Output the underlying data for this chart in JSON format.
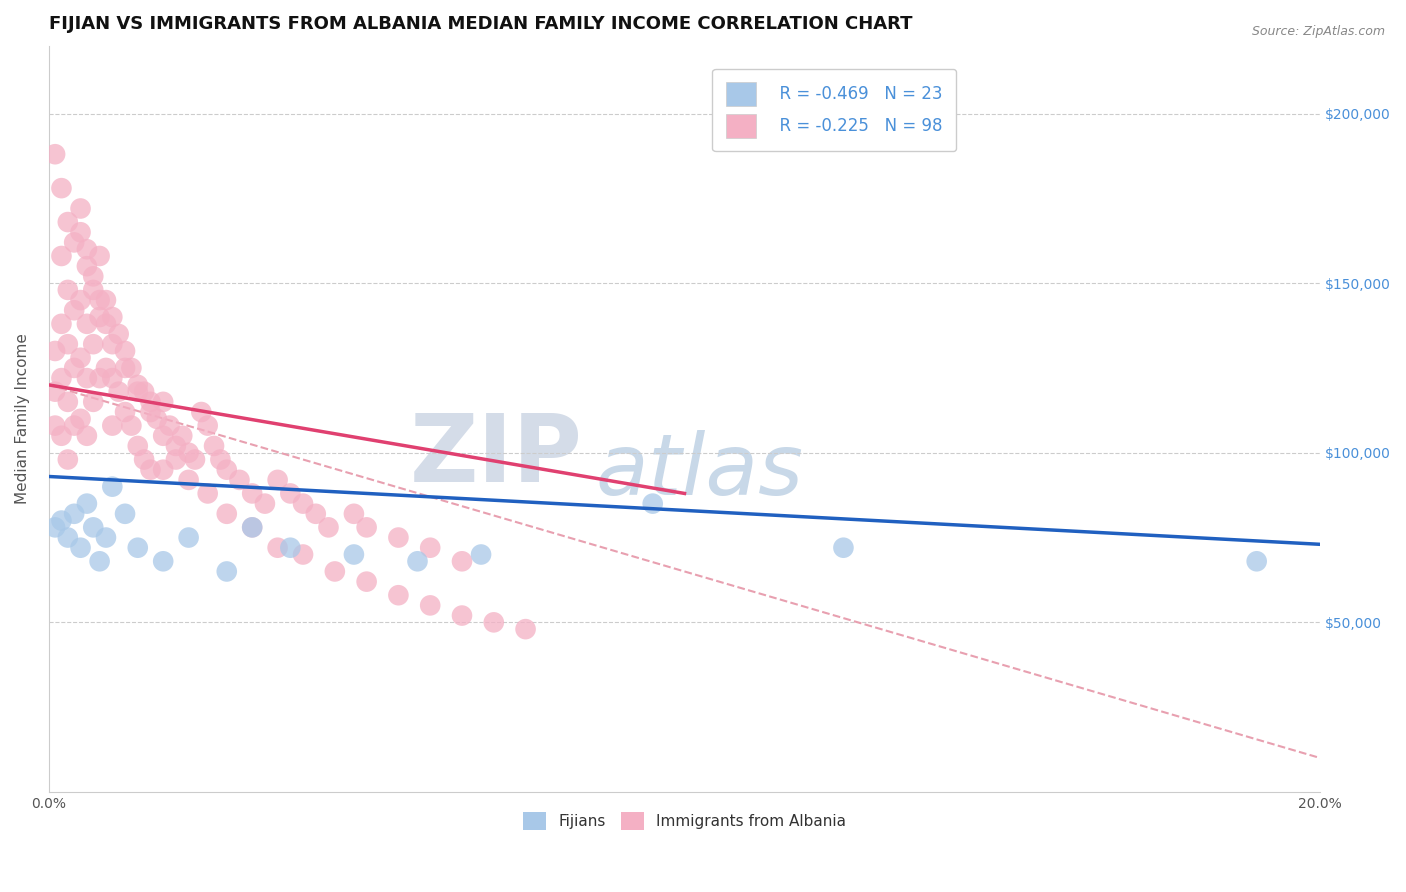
{
  "title": "FIJIAN VS IMMIGRANTS FROM ALBANIA MEDIAN FAMILY INCOME CORRELATION CHART",
  "source": "Source: ZipAtlas.com",
  "ylabel": "Median Family Income",
  "xlim": [
    0.0,
    0.2
  ],
  "ylim": [
    0,
    220000
  ],
  "xticks": [
    0.0,
    0.02,
    0.04,
    0.06,
    0.08,
    0.1,
    0.12,
    0.14,
    0.16,
    0.18,
    0.2
  ],
  "yticks": [
    0,
    50000,
    100000,
    150000,
    200000
  ],
  "fijian_color": "#a8c8e8",
  "albania_color": "#f4b0c4",
  "fijian_line_color": "#2060c0",
  "albania_line_color": "#e04070",
  "dashed_line_color": "#e8a0b0",
  "background_color": "#ffffff",
  "grid_color": "#cccccc",
  "title_fontsize": 13,
  "axis_label_fontsize": 11,
  "tick_fontsize": 10,
  "legend_fontsize": 12,
  "fijians_x": [
    0.001,
    0.002,
    0.003,
    0.004,
    0.005,
    0.006,
    0.007,
    0.008,
    0.009,
    0.01,
    0.012,
    0.014,
    0.018,
    0.022,
    0.028,
    0.032,
    0.038,
    0.048,
    0.058,
    0.068,
    0.095,
    0.125,
    0.19
  ],
  "fijians_y": [
    78000,
    80000,
    75000,
    82000,
    72000,
    85000,
    78000,
    68000,
    75000,
    90000,
    82000,
    72000,
    68000,
    75000,
    65000,
    78000,
    72000,
    70000,
    68000,
    70000,
    85000,
    72000,
    68000
  ],
  "albania_x": [
    0.001,
    0.001,
    0.001,
    0.002,
    0.002,
    0.002,
    0.002,
    0.003,
    0.003,
    0.003,
    0.003,
    0.004,
    0.004,
    0.004,
    0.005,
    0.005,
    0.005,
    0.005,
    0.006,
    0.006,
    0.006,
    0.006,
    0.007,
    0.007,
    0.007,
    0.008,
    0.008,
    0.008,
    0.009,
    0.009,
    0.01,
    0.01,
    0.01,
    0.011,
    0.011,
    0.012,
    0.012,
    0.013,
    0.013,
    0.014,
    0.014,
    0.015,
    0.015,
    0.016,
    0.016,
    0.017,
    0.018,
    0.018,
    0.019,
    0.02,
    0.021,
    0.022,
    0.023,
    0.024,
    0.025,
    0.026,
    0.027,
    0.028,
    0.03,
    0.032,
    0.034,
    0.036,
    0.038,
    0.04,
    0.042,
    0.044,
    0.048,
    0.05,
    0.055,
    0.06,
    0.065,
    0.001,
    0.002,
    0.003,
    0.004,
    0.005,
    0.006,
    0.007,
    0.008,
    0.009,
    0.01,
    0.012,
    0.014,
    0.016,
    0.018,
    0.02,
    0.022,
    0.025,
    0.028,
    0.032,
    0.036,
    0.04,
    0.045,
    0.05,
    0.055,
    0.06,
    0.065,
    0.07,
    0.075
  ],
  "albania_y": [
    130000,
    118000,
    108000,
    158000,
    138000,
    122000,
    105000,
    148000,
    132000,
    115000,
    98000,
    142000,
    125000,
    108000,
    165000,
    145000,
    128000,
    110000,
    155000,
    138000,
    122000,
    105000,
    148000,
    132000,
    115000,
    158000,
    140000,
    122000,
    145000,
    125000,
    140000,
    122000,
    108000,
    135000,
    118000,
    130000,
    112000,
    125000,
    108000,
    120000,
    102000,
    118000,
    98000,
    115000,
    95000,
    110000,
    115000,
    95000,
    108000,
    102000,
    105000,
    100000,
    98000,
    112000,
    108000,
    102000,
    98000,
    95000,
    92000,
    88000,
    85000,
    92000,
    88000,
    85000,
    82000,
    78000,
    82000,
    78000,
    75000,
    72000,
    68000,
    188000,
    178000,
    168000,
    162000,
    172000,
    160000,
    152000,
    145000,
    138000,
    132000,
    125000,
    118000,
    112000,
    105000,
    98000,
    92000,
    88000,
    82000,
    78000,
    72000,
    70000,
    65000,
    62000,
    58000,
    55000,
    52000,
    50000,
    48000
  ]
}
